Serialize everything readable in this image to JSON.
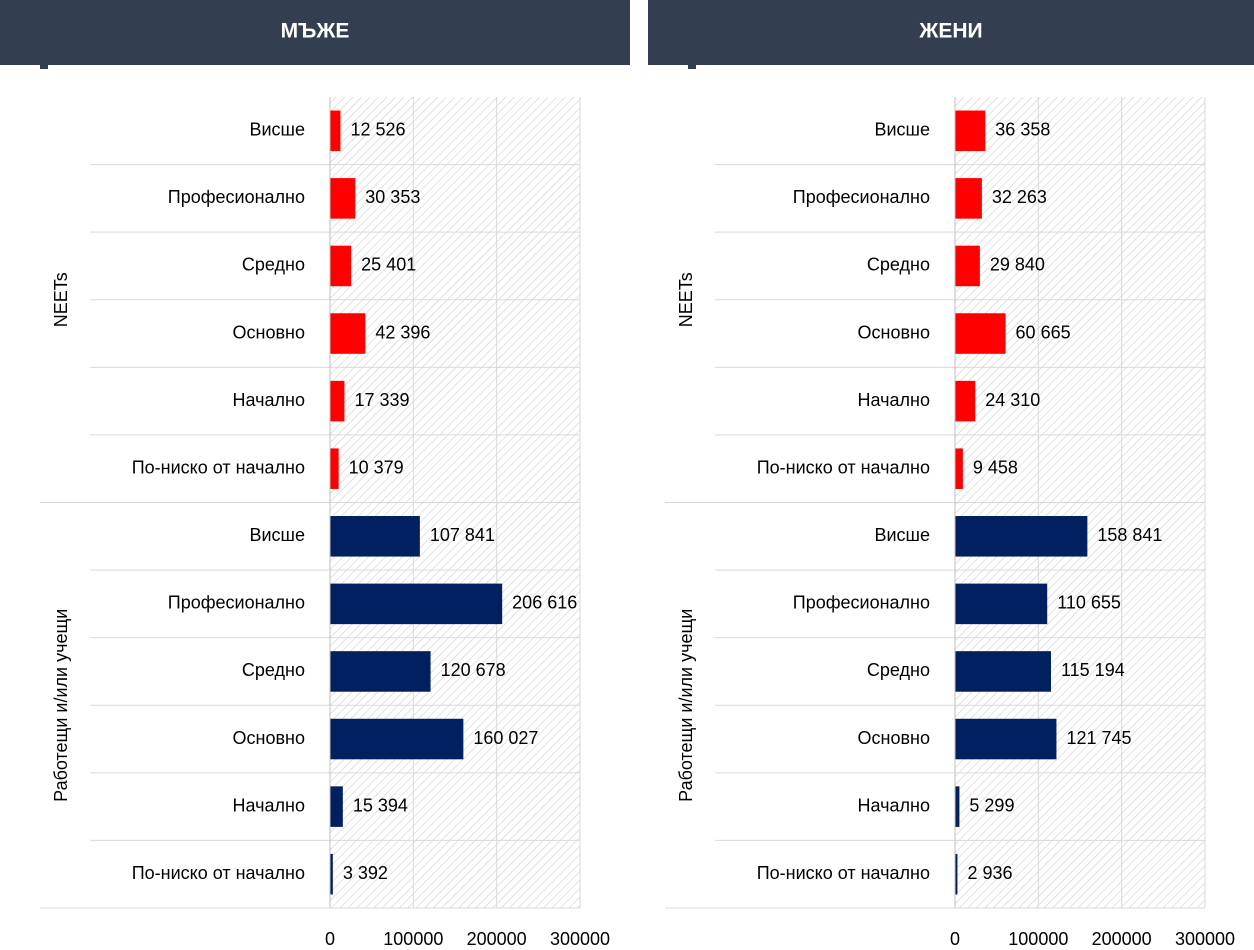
{
  "chart_data": [
    {
      "type": "bar",
      "title": "МЪЖЕ",
      "categories": [
        "Висше",
        "Професионално",
        "Средно",
        "Основно",
        "Начално",
        "По-ниско от начално"
      ],
      "series": [
        {
          "name": "NEETs",
          "color": "#ff0000",
          "values": [
            12526,
            30353,
            25401,
            42396,
            17339,
            10379
          ],
          "value_labels": [
            "12 526",
            "30 353",
            "25 401",
            "42 396",
            "17 339",
            "10 379"
          ]
        },
        {
          "name": "Работещи и/или учещи",
          "color": "#002060",
          "values": [
            107841,
            206616,
            120678,
            160027,
            15394,
            3392
          ],
          "value_labels": [
            "107 841",
            "206 616",
            "120 678",
            "160 027",
            "15 394",
            "3 392"
          ]
        }
      ],
      "xlim": [
        0,
        300000
      ],
      "xticks": [
        0,
        100000,
        200000,
        300000
      ],
      "grid": true
    },
    {
      "type": "bar",
      "title": "ЖЕНИ",
      "categories": [
        "Висше",
        "Професионално",
        "Средно",
        "Основно",
        "Начално",
        "По-ниско от начално"
      ],
      "series": [
        {
          "name": "NEETs",
          "color": "#ff0000",
          "values": [
            36358,
            32263,
            29840,
            60665,
            24310,
            9458
          ],
          "value_labels": [
            "36 358",
            "32 263",
            "29 840",
            "60 665",
            "24 310",
            "9 458"
          ]
        },
        {
          "name": "Работещи и/или учещи",
          "color": "#002060",
          "values": [
            158841,
            110655,
            115194,
            121745,
            5299,
            2936
          ],
          "value_labels": [
            "158 841",
            "110 655",
            "115 194",
            "121 745",
            "5 299",
            "2 936"
          ]
        }
      ],
      "xlim": [
        0,
        300000
      ],
      "xticks": [
        0,
        100000,
        200000,
        300000
      ],
      "grid": true
    }
  ]
}
